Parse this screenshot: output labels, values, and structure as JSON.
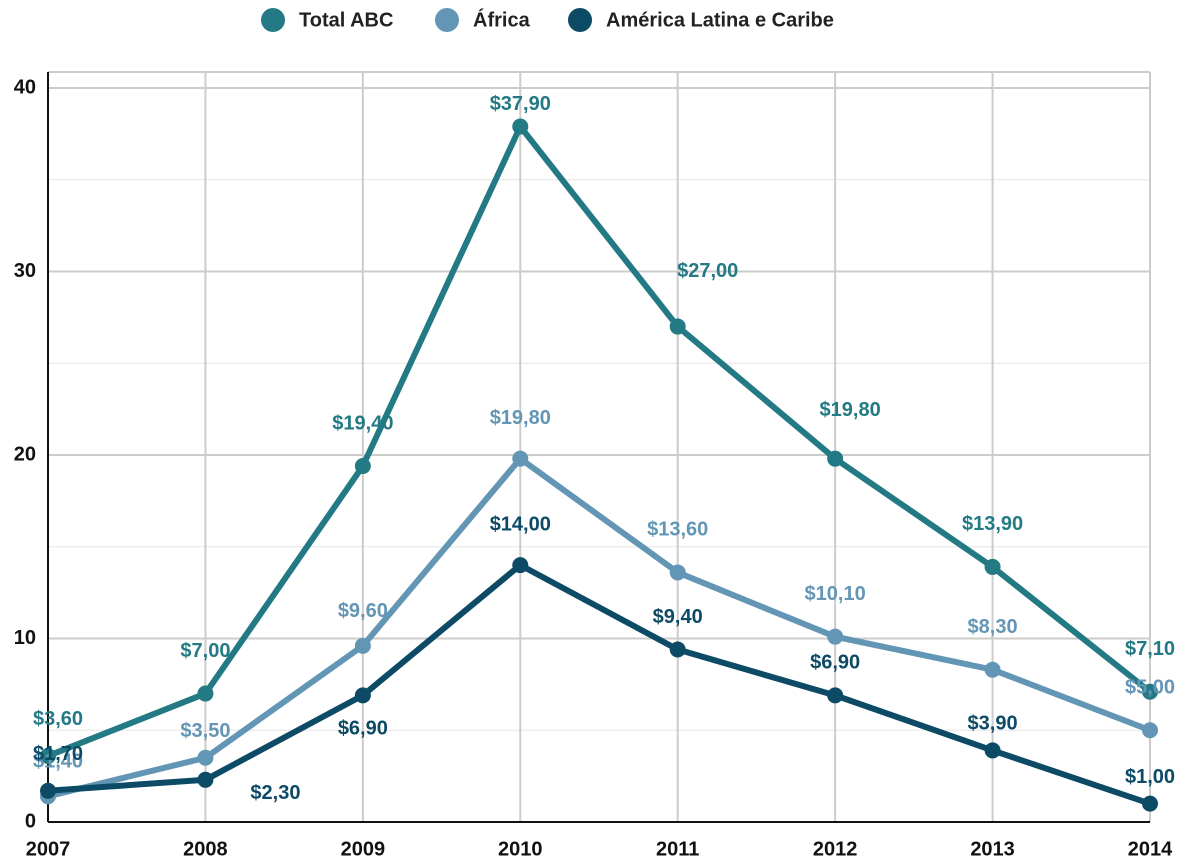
{
  "chart_data": {
    "type": "line",
    "categories": [
      "2007",
      "2008",
      "2009",
      "2010",
      "2011",
      "2012",
      "2013",
      "2014"
    ],
    "series": [
      {
        "name": "Total ABC",
        "color": "#237a84",
        "values": [
          3.6,
          7.0,
          19.4,
          37.9,
          27.0,
          19.8,
          13.9,
          7.1
        ],
        "value_labels": [
          "$3,60",
          "$7,00",
          "$19,40",
          "$37,90",
          "$27,00",
          "$19,80",
          "$13,90",
          "$7,10"
        ]
      },
      {
        "name": "África",
        "color": "#6396b5",
        "values": [
          1.4,
          3.5,
          9.6,
          19.8,
          13.6,
          10.1,
          8.3,
          5.0
        ],
        "value_labels": [
          "$1,40",
          "$3,50",
          "$9,60",
          "$19,80",
          "$13,60",
          "$10,10",
          "$8,30",
          "$5,00"
        ]
      },
      {
        "name": "América Latina e Caribe",
        "color": "#0d4a66",
        "values": [
          1.7,
          2.3,
          6.9,
          14.0,
          9.4,
          6.9,
          3.9,
          1.0
        ],
        "value_labels": [
          "$1,70",
          "$2,30",
          "$6,90",
          "$14,00",
          "$9,40",
          "$6,90",
          "$3,90",
          "$1,00"
        ]
      }
    ],
    "ylim": [
      0,
      40
    ],
    "yticks": [
      0,
      10,
      20,
      30,
      40
    ],
    "minor_yticks": [
      5,
      15,
      25,
      35
    ],
    "grid": true,
    "legend": "top"
  }
}
